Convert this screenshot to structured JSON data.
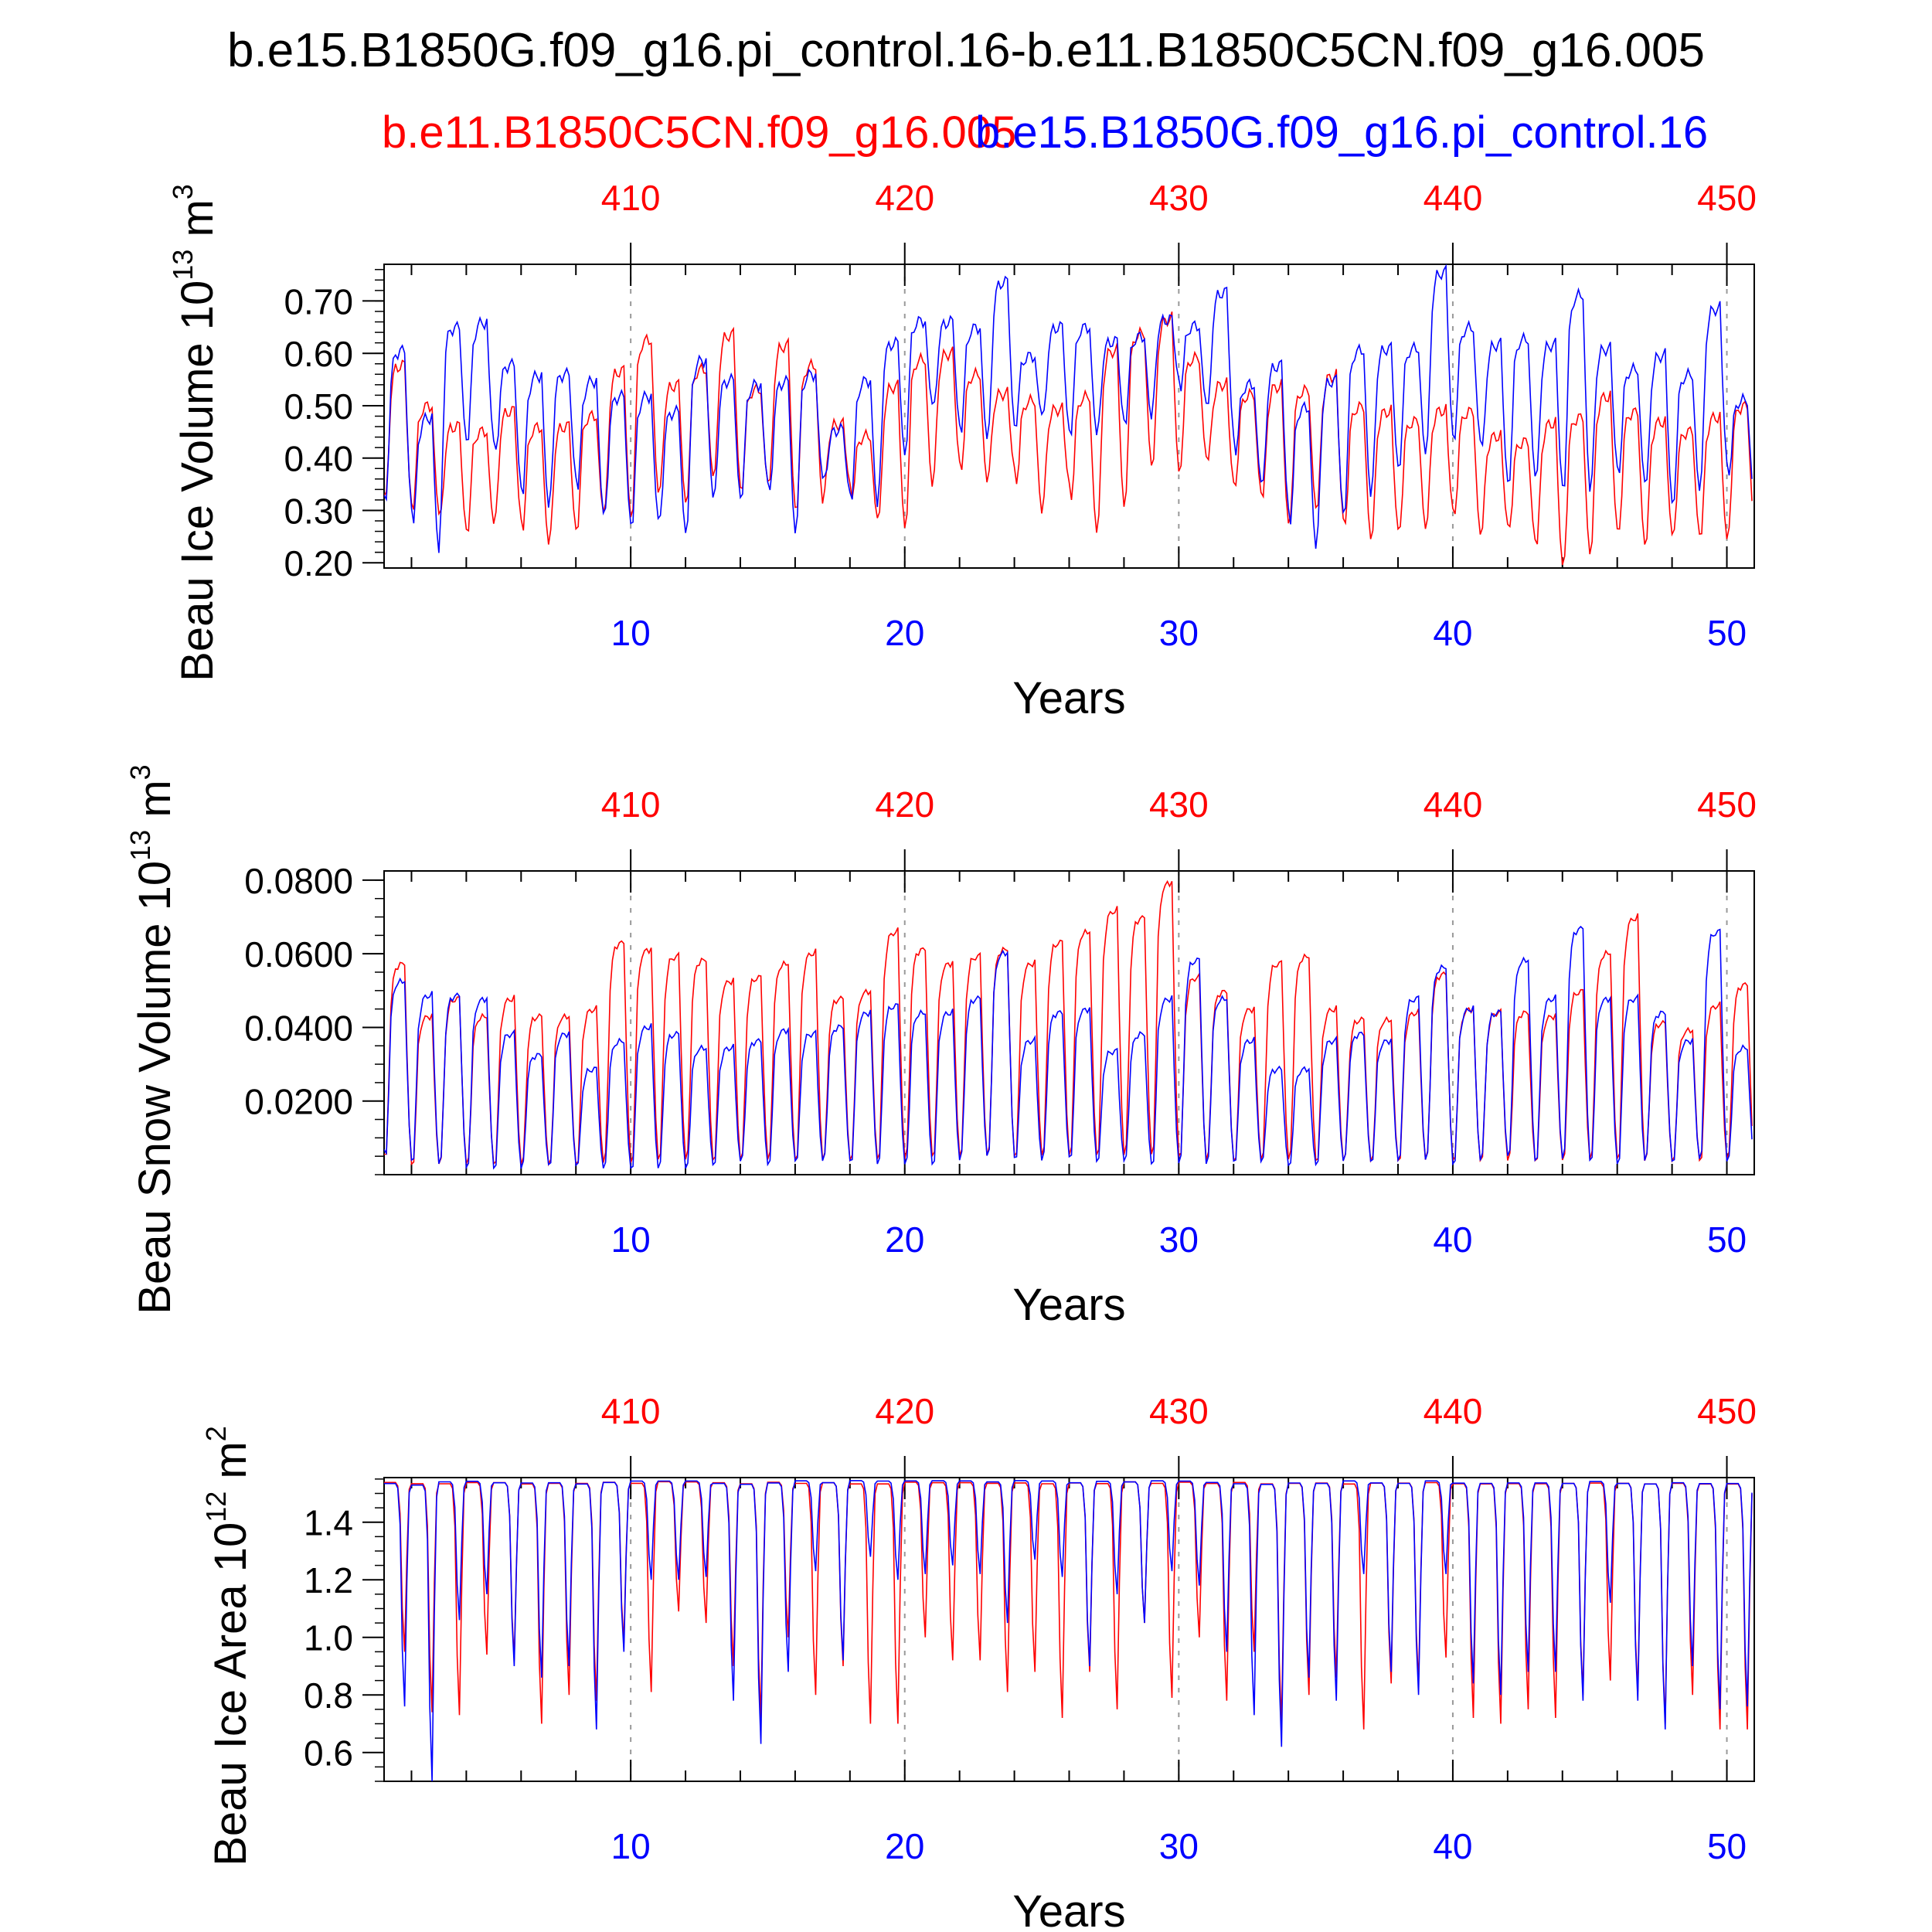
{
  "title": "b.e15.B1850G.f09_g16.pi_control.16-b.e11.B1850C5CN.f09_g16.005",
  "series_labels": {
    "red": "b.e11.B1850C5CN.f09_g16.005",
    "blue": "b.e15.B1850G.f09_g16.pi_control.16"
  },
  "colors": {
    "red": "#ff0000",
    "blue": "#0000ff",
    "axis": "#000000",
    "grid": "#999999"
  },
  "chart_data": [
    {
      "type": "line",
      "ylabel": "Beau Ice Volume 10",
      "ylabel_exp": "13",
      "ylabel_unit": " m",
      "ylabel_unit_exp": "3",
      "xlabel": "Years",
      "xlim": [
        1,
        51
      ],
      "ylim": [
        0.19,
        0.77
      ],
      "yticks": [
        0.2,
        0.3,
        0.4,
        0.5,
        0.6,
        0.7
      ],
      "ytick_labels": [
        "0.20",
        "0.30",
        "0.40",
        "0.50",
        "0.60",
        "0.70"
      ],
      "ytick_minor": 0.02,
      "xticks_bottom": [
        10,
        20,
        30,
        40,
        50
      ],
      "xtick_labels_bottom": [
        "10",
        "20",
        "30",
        "40",
        "50"
      ],
      "xtick_labels_top": [
        "410",
        "420",
        "430",
        "440",
        "450"
      ],
      "year_offset_top": 400,
      "series": [
        {
          "name": "b.e11.B1850C5CN.f09_g16.005",
          "color": "#ff0000",
          "peaks": [
            0.59,
            0.51,
            0.47,
            0.46,
            0.5,
            0.47,
            0.47,
            0.49,
            0.58,
            0.64,
            0.55,
            0.58,
            0.65,
            0.54,
            0.63,
            0.59,
            0.47,
            0.45,
            0.55,
            0.6,
            0.61,
            0.57,
            0.53,
            0.52,
            0.5,
            0.53,
            0.62,
            0.65,
            0.68,
            0.6,
            0.55,
            0.53,
            0.55,
            0.54,
            0.57,
            0.51,
            0.5,
            0.48,
            0.5,
            0.5,
            0.45,
            0.44,
            0.48,
            0.49,
            0.53,
            0.5,
            0.48,
            0.46,
            0.49,
            0.51
          ],
          "troughs": [
            0.31,
            0.29,
            0.26,
            0.27,
            0.28,
            0.23,
            0.26,
            0.29,
            0.28,
            0.33,
            0.31,
            0.36,
            0.34,
            0.35,
            0.3,
            0.31,
            0.35,
            0.28,
            0.26,
            0.34,
            0.39,
            0.35,
            0.38,
            0.29,
            0.35,
            0.25,
            0.3,
            0.38,
            0.37,
            0.4,
            0.35,
            0.33,
            0.27,
            0.3,
            0.28,
            0.24,
            0.26,
            0.26,
            0.3,
            0.25,
            0.27,
            0.24,
            0.19,
            0.21,
            0.26,
            0.23,
            0.25,
            0.25,
            0.24,
            0.27
          ]
        },
        {
          "name": "b.e15.B1850G.f09_g16.pi_control.16",
          "color": "#0000ff",
          "peaks": [
            0.62,
            0.49,
            0.66,
            0.67,
            0.59,
            0.57,
            0.57,
            0.56,
            0.53,
            0.53,
            0.5,
            0.6,
            0.56,
            0.55,
            0.56,
            0.57,
            0.46,
            0.56,
            0.63,
            0.67,
            0.67,
            0.66,
            0.75,
            0.6,
            0.66,
            0.66,
            0.63,
            0.64,
            0.67,
            0.66,
            0.73,
            0.55,
            0.59,
            0.51,
            0.56,
            0.62,
            0.62,
            0.62,
            0.77,
            0.66,
            0.63,
            0.64,
            0.63,
            0.73,
            0.62,
            0.58,
            0.61,
            0.57,
            0.7,
            0.52
          ],
          "troughs": [
            0.3,
            0.21,
            0.43,
            0.43,
            0.34,
            0.3,
            0.36,
            0.29,
            0.27,
            0.28,
            0.25,
            0.32,
            0.32,
            0.35,
            0.25,
            0.36,
            0.33,
            0.3,
            0.4,
            0.5,
            0.46,
            0.43,
            0.46,
            0.48,
            0.45,
            0.44,
            0.47,
            0.47,
            0.55,
            0.5,
            0.44,
            0.35,
            0.3,
            0.22,
            0.29,
            0.32,
            0.38,
            0.4,
            0.44,
            0.43,
            0.35,
            0.36,
            0.34,
            0.33,
            0.38,
            0.35,
            0.31,
            0.33,
            0.39,
            0.32
          ]
        }
      ]
    },
    {
      "type": "line",
      "ylabel": "Beau Snow Volume 10",
      "ylabel_exp": "13",
      "ylabel_unit": " m",
      "ylabel_unit_exp": "3",
      "xlabel": "Years",
      "xlim": [
        1,
        51
      ],
      "ylim": [
        0.0,
        0.0825
      ],
      "yticks": [
        0.02,
        0.04,
        0.06,
        0.08
      ],
      "ytick_labels": [
        "0.0200",
        "0.0400",
        "0.0600",
        "0.0800"
      ],
      "ytick_minor": 0.005,
      "xticks_bottom": [
        10,
        20,
        30,
        40,
        50
      ],
      "xtick_labels_bottom": [
        "10",
        "20",
        "30",
        "40",
        "50"
      ],
      "xtick_labels_top": [
        "410",
        "420",
        "430",
        "440",
        "450"
      ],
      "year_offset_top": 400,
      "series": [
        {
          "name": "b.e11.B1850C5CN.f09_g16.005",
          "color": "#ff0000",
          "peaks": [
            0.06,
            0.045,
            0.05,
            0.045,
            0.05,
            0.045,
            0.045,
            0.047,
            0.066,
            0.064,
            0.062,
            0.061,
            0.055,
            0.056,
            0.06,
            0.063,
            0.05,
            0.052,
            0.069,
            0.064,
            0.06,
            0.062,
            0.064,
            0.06,
            0.066,
            0.069,
            0.075,
            0.073,
            0.083,
            0.056,
            0.052,
            0.047,
            0.06,
            0.062,
            0.047,
            0.044,
            0.044,
            0.046,
            0.057,
            0.047,
            0.046,
            0.046,
            0.045,
            0.052,
            0.063,
            0.073,
            0.043,
            0.041,
            0.048,
            0.054
          ],
          "troughs": [
            0.002,
            0.002,
            0.002,
            0.002,
            0.002,
            0.002,
            0.002,
            0.002,
            0.002,
            0.003,
            0.003,
            0.003,
            0.003,
            0.003,
            0.003,
            0.003,
            0.003,
            0.003,
            0.003,
            0.004,
            0.004,
            0.004,
            0.004,
            0.004,
            0.004,
            0.004,
            0.004,
            0.004,
            0.004,
            0.003,
            0.003,
            0.003,
            0.003,
            0.003,
            0.003,
            0.003,
            0.003,
            0.003,
            0.003,
            0.003,
            0.003,
            0.003,
            0.003,
            0.003,
            0.003,
            0.003,
            0.003,
            0.003,
            0.003,
            0.003
          ]
        },
        {
          "name": "b.e15.B1850G.f09_g16.pi_control.16",
          "color": "#0000ff",
          "peaks": [
            0.055,
            0.051,
            0.051,
            0.05,
            0.04,
            0.034,
            0.04,
            0.03,
            0.038,
            0.042,
            0.04,
            0.036,
            0.036,
            0.038,
            0.041,
            0.04,
            0.042,
            0.046,
            0.048,
            0.046,
            0.046,
            0.05,
            0.063,
            0.038,
            0.046,
            0.047,
            0.035,
            0.04,
            0.05,
            0.061,
            0.05,
            0.038,
            0.03,
            0.03,
            0.038,
            0.04,
            0.038,
            0.05,
            0.059,
            0.047,
            0.046,
            0.061,
            0.05,
            0.07,
            0.05,
            0.05,
            0.046,
            0.038,
            0.069,
            0.036
          ],
          "troughs": [
            0.003,
            0.002,
            0.001,
            0.001,
            0.001,
            0.002,
            0.002,
            0.001,
            0.001,
            0.001,
            0.001,
            0.002,
            0.003,
            0.002,
            0.003,
            0.003,
            0.003,
            0.002,
            0.002,
            0.002,
            0.003,
            0.004,
            0.004,
            0.003,
            0.004,
            0.003,
            0.003,
            0.002,
            0.002,
            0.002,
            0.003,
            0.003,
            0.002,
            0.002,
            0.003,
            0.003,
            0.003,
            0.003,
            0.002,
            0.003,
            0.004,
            0.003,
            0.003,
            0.003,
            0.002,
            0.003,
            0.003,
            0.003,
            0.003,
            0.003
          ]
        }
      ]
    },
    {
      "type": "line",
      "ylabel": "Beau Ice Area 10",
      "ylabel_exp": "12",
      "ylabel_unit": " m",
      "ylabel_unit_exp": "2",
      "xlabel": "Years",
      "xlim": [
        1,
        51
      ],
      "ylim": [
        0.5,
        1.555
      ],
      "yticks": [
        0.6,
        0.8,
        1.0,
        1.2,
        1.4
      ],
      "ytick_labels": [
        "0.6",
        "0.8",
        "1.0",
        "1.2",
        "1.4"
      ],
      "ytick_minor": 0.05,
      "xticks_bottom": [
        10,
        20,
        30,
        40,
        50
      ],
      "xtick_labels_bottom": [
        "10",
        "20",
        "30",
        "40",
        "50"
      ],
      "xtick_labels_top": [
        "410",
        "420",
        "430",
        "440",
        "450"
      ],
      "year_offset_top": 400,
      "series": [
        {
          "name": "b.e11.B1850C5CN.f09_g16.005",
          "color": "#ff0000",
          "peaks": [
            1.55,
            1.55,
            1.55,
            1.55,
            1.55,
            1.55,
            1.55,
            1.55,
            1.55,
            1.55,
            1.55,
            1.55,
            1.55,
            1.55,
            1.55,
            1.55,
            1.55,
            1.55,
            1.55,
            1.55,
            1.55,
            1.55,
            1.55,
            1.55,
            1.55,
            1.55,
            1.55,
            1.55,
            1.55,
            1.55,
            1.55,
            1.55,
            1.55,
            1.55,
            1.55,
            1.55,
            1.55,
            1.55,
            1.55,
            1.55,
            1.55,
            1.55,
            1.55,
            1.55,
            1.55,
            1.55,
            1.55,
            1.55,
            1.55,
            1.55
          ],
          "troughs": [
            0.95,
            0.74,
            0.73,
            0.94,
            0.92,
            0.7,
            0.8,
            0.78,
            0.98,
            0.81,
            1.09,
            1.05,
            0.9,
            0.72,
            1.0,
            0.8,
            0.9,
            0.7,
            0.7,
            1.0,
            0.92,
            0.92,
            0.81,
            0.88,
            0.72,
            0.88,
            0.75,
            1.05,
            0.79,
            1.0,
            0.78,
            0.95,
            0.7,
            0.8,
            0.86,
            0.68,
            0.84,
            0.84,
            0.93,
            0.72,
            0.7,
            0.75,
            0.72,
            0.8,
            0.85,
            0.81,
            0.7,
            0.8,
            0.68,
            0.68
          ]
        },
        {
          "name": "b.e15.B1850G.f09_g16.pi_control.16",
          "color": "#0000ff",
          "peaks": [
            1.55,
            1.55,
            1.55,
            1.55,
            1.55,
            1.55,
            1.55,
            1.55,
            1.55,
            1.55,
            1.55,
            1.55,
            1.55,
            1.55,
            1.55,
            1.55,
            1.55,
            1.55,
            1.55,
            1.55,
            1.55,
            1.55,
            1.55,
            1.55,
            1.55,
            1.55,
            1.55,
            1.55,
            1.55,
            1.55,
            1.55,
            1.55,
            1.55,
            1.55,
            1.55,
            1.55,
            1.55,
            1.55,
            1.55,
            1.55,
            1.55,
            1.55,
            1.55,
            1.55,
            1.55,
            1.55,
            1.55,
            1.55,
            1.55,
            1.55
          ],
          "troughs": [
            0.76,
            0.5,
            1.06,
            1.15,
            0.9,
            0.86,
            0.9,
            0.68,
            0.95,
            1.2,
            1.2,
            1.21,
            0.78,
            0.63,
            0.88,
            1.23,
            0.92,
            1.28,
            1.2,
            1.22,
            1.25,
            1.22,
            1.05,
            1.27,
            1.21,
            0.9,
            1.15,
            1.05,
            1.23,
            1.18,
            0.95,
            0.73,
            0.62,
            0.86,
            0.78,
            1.22,
            0.88,
            0.8,
            1.22,
            0.84,
            0.8,
            0.88,
            0.88,
            0.78,
            1.12,
            0.78,
            0.68,
            0.9,
            0.75,
            0.76
          ]
        }
      ]
    }
  ]
}
